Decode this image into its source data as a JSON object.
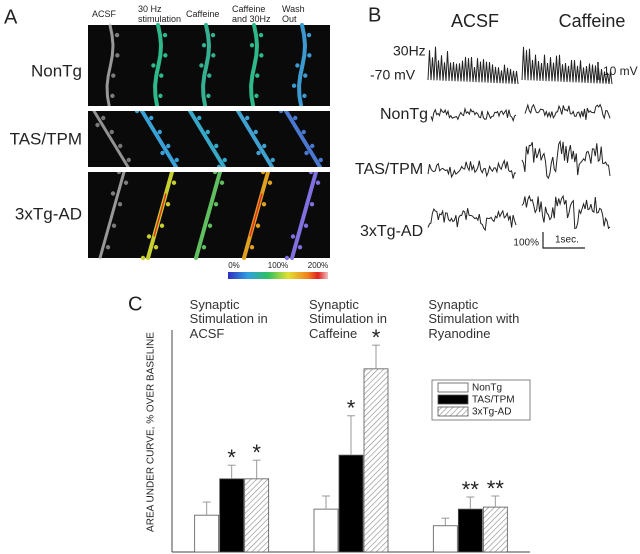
{
  "panel_a": {
    "label": "A",
    "columns": [
      "ACSF",
      "30 Hz stimulation",
      "Caffeine",
      "Caffeine and 30Hz",
      "Wash Out"
    ],
    "rows": [
      "NonTg",
      "TAS/TPM",
      "3xTg-AD"
    ],
    "colorbar_labels": [
      "0%",
      "100%",
      "200%"
    ]
  },
  "panel_b": {
    "label": "B",
    "columns": [
      "ACSF",
      "Caffeine"
    ],
    "stimulus": "30Hz",
    "resting": "-70 mV",
    "scale_voltage": "10 mV",
    "rows": [
      "NonTg",
      "TAS/TPM",
      "3xTg-AD"
    ],
    "scale_percent": "100%",
    "scale_time": "1sec."
  },
  "chart_data": {
    "type": "bar",
    "panel_label": "C",
    "ylabel": "AREA UNDER CURVE, % OVER BASELINE",
    "categories": [
      "Synaptic Stimulation in ACSF",
      "Synaptic Stimulation in Caffeine",
      "Synaptic Stimulation with Ryanodine"
    ],
    "ylim": [
      0,
      440
    ],
    "series": [
      {
        "name": "NonTg",
        "color": "#ffffff",
        "values": [
          73,
          85,
          52
        ],
        "errors": [
          26,
          26,
          15
        ],
        "significance": [
          null,
          null,
          null
        ]
      },
      {
        "name": "TAS/TPM",
        "color": "#000000",
        "values": [
          145,
          192,
          85
        ],
        "errors": [
          27,
          78,
          24
        ],
        "significance": [
          "*",
          "*",
          "**"
        ]
      },
      {
        "name": "3xTg-AD",
        "color": "#ffffff",
        "hatch": true,
        "values": [
          145,
          363,
          89
        ],
        "errors": [
          37,
          47,
          22
        ],
        "significance": [
          "*",
          "*",
          "**"
        ]
      }
    ]
  }
}
